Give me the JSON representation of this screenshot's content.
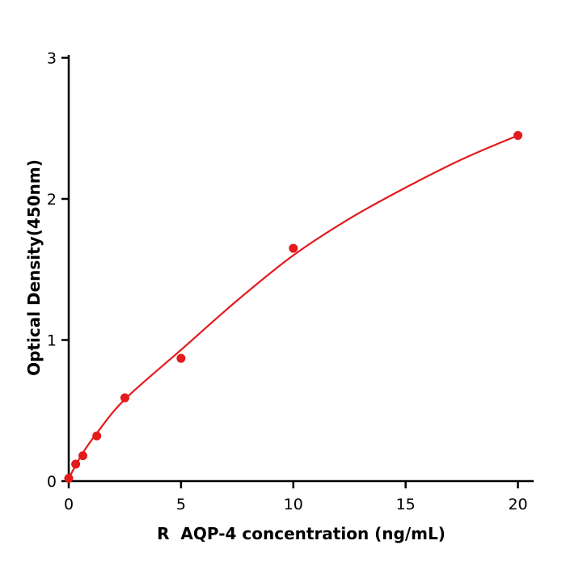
{
  "chart_data": {
    "type": "scatter",
    "title": "",
    "xlabel": "R  AQP-4 concentration (ng/mL)",
    "ylabel": "Optical Density(450nm)",
    "xlim": [
      0,
      20.7
    ],
    "ylim": [
      0,
      3.02
    ],
    "xticks": [
      0,
      5,
      10,
      15,
      20
    ],
    "yticks": [
      0,
      1,
      2,
      3
    ],
    "points": [
      [
        0,
        0.02
      ],
      [
        0.31,
        0.12
      ],
      [
        0.63,
        0.18
      ],
      [
        1.25,
        0.32
      ],
      [
        2.5,
        0.59
      ],
      [
        5,
        0.87
      ],
      [
        10,
        1.65
      ],
      [
        20,
        2.45
      ]
    ],
    "fit_curve": [
      [
        0,
        0.02
      ],
      [
        0.63,
        0.2
      ],
      [
        1.25,
        0.34
      ],
      [
        2.5,
        0.58
      ],
      [
        5,
        0.93
      ],
      [
        7.5,
        1.28
      ],
      [
        10,
        1.6
      ],
      [
        12.5,
        1.86
      ],
      [
        15,
        2.08
      ],
      [
        17.5,
        2.28
      ],
      [
        20,
        2.45
      ]
    ],
    "marker_color": "#e41a1c",
    "line_color": "#e41a1c",
    "axis_color": "#000000",
    "background": "#ffffff",
    "grid": false,
    "legend": null
  }
}
